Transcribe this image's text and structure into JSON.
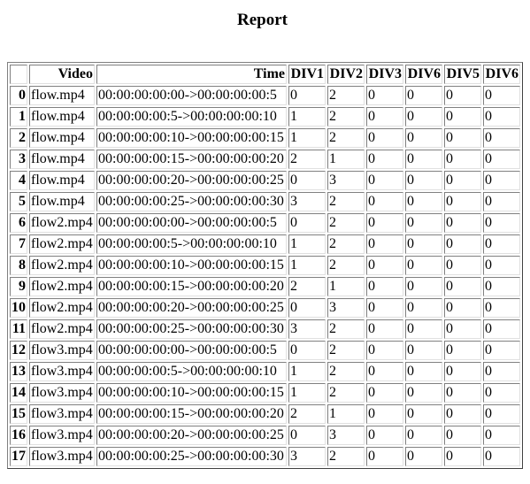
{
  "title": "Report",
  "columns": [
    "",
    "Video",
    "Time",
    "DIV1",
    "DIV2",
    "DIV3",
    "DIV6",
    "DIV5",
    "DIV6"
  ],
  "rows": [
    [
      "0",
      "flow.mp4",
      "00:00:00:00:00->00:00:00:00:5",
      "0",
      "2",
      "0",
      "0",
      "0",
      "0"
    ],
    [
      "1",
      "flow.mp4",
      "00:00:00:00:5->00:00:00:00:10",
      "1",
      "2",
      "0",
      "0",
      "0",
      "0"
    ],
    [
      "2",
      "flow.mp4",
      "00:00:00:00:10->00:00:00:00:15",
      "1",
      "2",
      "0",
      "0",
      "0",
      "0"
    ],
    [
      "3",
      "flow.mp4",
      "00:00:00:00:15->00:00:00:00:20",
      "2",
      "1",
      "0",
      "0",
      "0",
      "0"
    ],
    [
      "4",
      "flow.mp4",
      "00:00:00:00:20->00:00:00:00:25",
      "0",
      "3",
      "0",
      "0",
      "0",
      "0"
    ],
    [
      "5",
      "flow.mp4",
      "00:00:00:00:25->00:00:00:00:30",
      "3",
      "2",
      "0",
      "0",
      "0",
      "0"
    ],
    [
      "6",
      "flow2.mp4",
      "00:00:00:00:00->00:00:00:00:5",
      "0",
      "2",
      "0",
      "0",
      "0",
      "0"
    ],
    [
      "7",
      "flow2.mp4",
      "00:00:00:00:5->00:00:00:00:10",
      "1",
      "2",
      "0",
      "0",
      "0",
      "0"
    ],
    [
      "8",
      "flow2.mp4",
      "00:00:00:00:10->00:00:00:00:15",
      "1",
      "2",
      "0",
      "0",
      "0",
      "0"
    ],
    [
      "9",
      "flow2.mp4",
      "00:00:00:00:15->00:00:00:00:20",
      "2",
      "1",
      "0",
      "0",
      "0",
      "0"
    ],
    [
      "10",
      "flow2.mp4",
      "00:00:00:00:20->00:00:00:00:25",
      "0",
      "3",
      "0",
      "0",
      "0",
      "0"
    ],
    [
      "11",
      "flow2.mp4",
      "00:00:00:00:25->00:00:00:00:30",
      "3",
      "2",
      "0",
      "0",
      "0",
      "0"
    ],
    [
      "12",
      "flow3.mp4",
      "00:00:00:00:00->00:00:00:00:5",
      "0",
      "2",
      "0",
      "0",
      "0",
      "0"
    ],
    [
      "13",
      "flow3.mp4",
      "00:00:00:00:5->00:00:00:00:10",
      "1",
      "2",
      "0",
      "0",
      "0",
      "0"
    ],
    [
      "14",
      "flow3.mp4",
      "00:00:00:00:10->00:00:00:00:15",
      "1",
      "2",
      "0",
      "0",
      "0",
      "0"
    ],
    [
      "15",
      "flow3.mp4",
      "00:00:00:00:15->00:00:00:00:20",
      "2",
      "1",
      "0",
      "0",
      "0",
      "0"
    ],
    [
      "16",
      "flow3.mp4",
      "00:00:00:00:20->00:00:00:00:25",
      "0",
      "3",
      "0",
      "0",
      "0",
      "0"
    ],
    [
      "17",
      "flow3.mp4",
      "00:00:00:00:25->00:00:00:00:30",
      "3",
      "2",
      "0",
      "0",
      "0",
      "0"
    ]
  ]
}
